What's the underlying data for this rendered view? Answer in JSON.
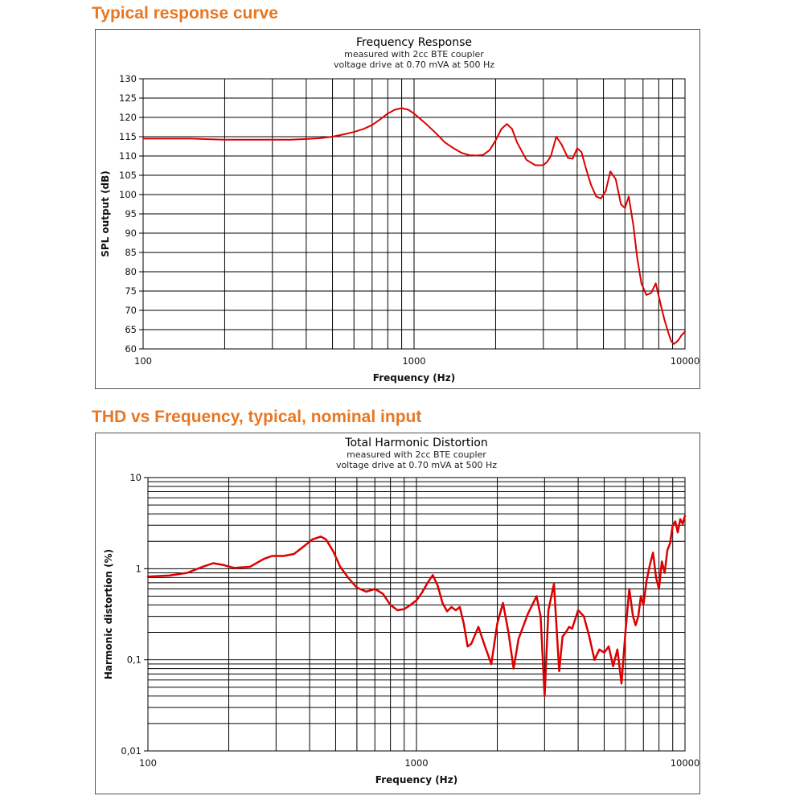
{
  "sections": [
    {
      "heading": "Typical response curve"
    },
    {
      "heading": "THD vs Frequency, typical, nominal input"
    }
  ],
  "colors": {
    "heading": "#e87722",
    "curve": "#dd0000",
    "grid": "#000000"
  },
  "chart_data": [
    {
      "type": "line",
      "title": "Frequency Response",
      "subtitle_lines": [
        "measured with 2cc BTE coupler",
        "voltage drive at 0.70 mVA at 500 Hz"
      ],
      "xlabel": "Frequency (Hz)",
      "ylabel": "SPL output (dB)",
      "xscale": "log",
      "xlim": [
        100,
        10000
      ],
      "ylim": [
        60,
        130
      ],
      "x_tick_labels": [
        "100",
        "1000",
        "10000"
      ],
      "y_tick_labels": [
        "60",
        "65",
        "70",
        "75",
        "80",
        "85",
        "90",
        "95",
        "100",
        "105",
        "110",
        "115",
        "120",
        "125",
        "130"
      ],
      "grid": true,
      "series": [
        {
          "name": "SPL output",
          "x": [
            100,
            150,
            200,
            300,
            350,
            400,
            450,
            500,
            550,
            600,
            650,
            700,
            750,
            800,
            850,
            900,
            950,
            1000,
            1100,
            1200,
            1300,
            1400,
            1500,
            1600,
            1700,
            1800,
            1900,
            2000,
            2100,
            2200,
            2300,
            2400,
            2600,
            2800,
            3000,
            3100,
            3200,
            3350,
            3500,
            3700,
            3850,
            4000,
            4150,
            4300,
            4500,
            4700,
            4900,
            5100,
            5300,
            5550,
            5800,
            6000,
            6200,
            6450,
            6650,
            6900,
            7200,
            7500,
            7800,
            8100,
            8400,
            8700,
            8900,
            9100,
            9300,
            9500,
            9700,
            10000
          ],
          "y": [
            114.5,
            114.5,
            114.2,
            114.2,
            114.2,
            114.4,
            114.6,
            115.0,
            115.6,
            116.2,
            117.0,
            118.0,
            119.5,
            121.0,
            122.0,
            122.4,
            122.0,
            121.0,
            118.5,
            116.0,
            113.5,
            112.0,
            110.8,
            110.2,
            110.1,
            110.3,
            111.5,
            114.0,
            117.0,
            118.3,
            117.0,
            113.5,
            109.0,
            107.6,
            107.6,
            108.5,
            110.0,
            115.0,
            113.0,
            109.5,
            109.3,
            112.0,
            111.0,
            107.0,
            102.5,
            99.5,
            99.0,
            101.0,
            106.0,
            104.0,
            97.5,
            96.5,
            99.5,
            92.0,
            84.0,
            77.0,
            74.0,
            74.5,
            77.0,
            72.0,
            67.5,
            64.0,
            62.0,
            61.3,
            61.8,
            62.5,
            63.5,
            64.5
          ]
        }
      ]
    },
    {
      "type": "line",
      "title": "Total Harmonic Distortion",
      "subtitle_lines": [
        "measured with 2cc BTE coupler",
        "voltage drive at 0.70 mVA at 500 Hz"
      ],
      "xlabel": "Frequency (Hz)",
      "ylabel": "Harmonic distortion (%)",
      "xscale": "log",
      "yscale": "log",
      "xlim": [
        100,
        10000
      ],
      "ylim": [
        0.01,
        10
      ],
      "x_tick_labels": [
        "100",
        "1000",
        "10000"
      ],
      "y_tick_labels": [
        "0,01",
        "0,1",
        "1",
        "10"
      ],
      "grid": true,
      "series": [
        {
          "name": "Harmonic distortion",
          "x": [
            100,
            120,
            140,
            160,
            175,
            190,
            210,
            240,
            270,
            290,
            320,
            350,
            380,
            410,
            440,
            460,
            490,
            520,
            560,
            600,
            650,
            700,
            750,
            800,
            850,
            900,
            950,
            1000,
            1050,
            1100,
            1150,
            1200,
            1250,
            1300,
            1350,
            1400,
            1450,
            1500,
            1550,
            1600,
            1700,
            1800,
            1900,
            2000,
            2100,
            2200,
            2300,
            2400,
            2600,
            2800,
            2900,
            3000,
            3100,
            3250,
            3400,
            3500,
            3600,
            3700,
            3800,
            4000,
            4200,
            4400,
            4600,
            4800,
            5000,
            5200,
            5400,
            5600,
            5800,
            6000,
            6200,
            6400,
            6550,
            6700,
            6850,
            7000,
            7200,
            7400,
            7600,
            7800,
            8000,
            8200,
            8400,
            8600,
            8800,
            9000,
            9200,
            9400,
            9600,
            9800,
            10000
          ],
          "y": [
            0.82,
            0.84,
            0.9,
            1.05,
            1.15,
            1.1,
            1.02,
            1.05,
            1.28,
            1.38,
            1.38,
            1.45,
            1.75,
            2.1,
            2.25,
            2.1,
            1.55,
            1.05,
            0.78,
            0.62,
            0.56,
            0.6,
            0.53,
            0.4,
            0.35,
            0.36,
            0.4,
            0.45,
            0.55,
            0.7,
            0.85,
            0.65,
            0.42,
            0.34,
            0.38,
            0.35,
            0.38,
            0.25,
            0.14,
            0.15,
            0.23,
            0.14,
            0.09,
            0.25,
            0.42,
            0.2,
            0.08,
            0.17,
            0.32,
            0.5,
            0.3,
            0.04,
            0.35,
            0.68,
            0.075,
            0.18,
            0.2,
            0.23,
            0.22,
            0.35,
            0.3,
            0.18,
            0.1,
            0.13,
            0.12,
            0.14,
            0.085,
            0.13,
            0.055,
            0.2,
            0.6,
            0.3,
            0.24,
            0.3,
            0.5,
            0.4,
            0.75,
            1.1,
            1.5,
            0.8,
            0.6,
            1.2,
            0.9,
            1.6,
            1.9,
            3.0,
            3.3,
            2.5,
            3.5,
            3.1,
            3.8
          ]
        }
      ]
    }
  ]
}
